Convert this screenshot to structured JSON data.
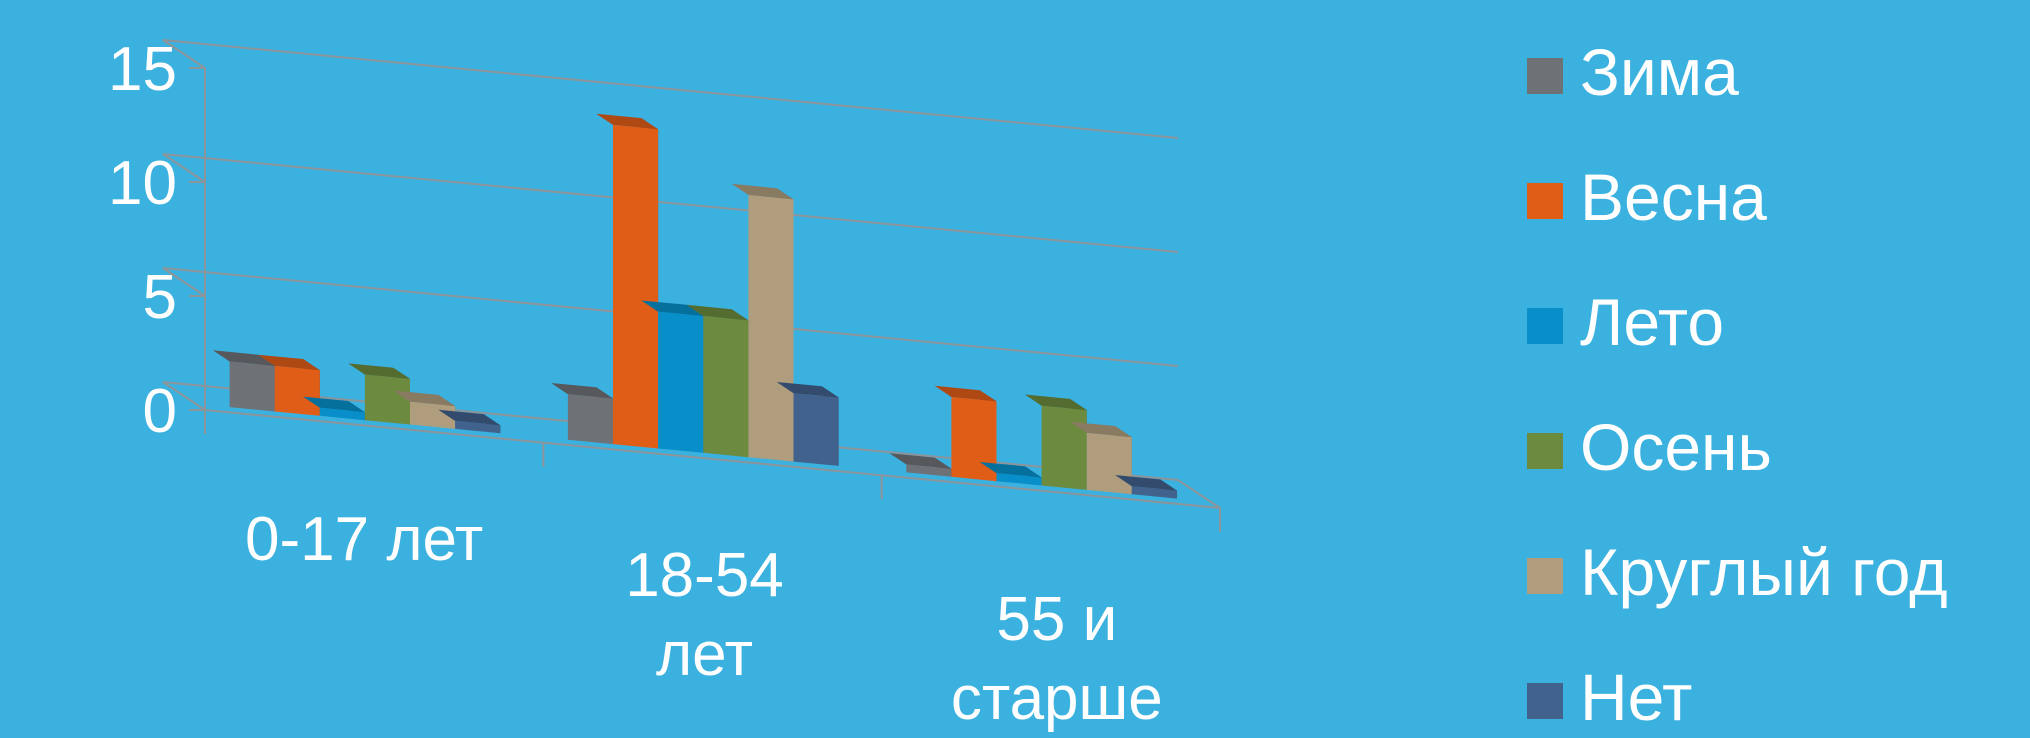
{
  "chart_data": {
    "type": "bar",
    "categories": [
      "0-17 лет",
      "18-54 лет",
      "55 и старше"
    ],
    "category_lines": [
      [
        "0-17 лет"
      ],
      [
        "18-54",
        "лет"
      ],
      [
        "55 и",
        "старше"
      ]
    ],
    "series": [
      {
        "name": "Зима",
        "values": [
          2,
          2,
          0
        ],
        "color": "#6e7176"
      },
      {
        "name": "Весна",
        "values": [
          2,
          14,
          3.5
        ],
        "color": "#e05d18"
      },
      {
        "name": "Лето",
        "values": [
          0,
          6,
          0
        ],
        "color": "#088fc9"
      },
      {
        "name": "Осень",
        "values": [
          2,
          6,
          3.5
        ],
        "color": "#6d8b3f"
      },
      {
        "name": "Круглый год",
        "values": [
          1,
          11.5,
          2.5
        ],
        "color": "#b09d7d"
      },
      {
        "name": "Нет",
        "values": [
          0,
          3,
          0
        ],
        "color": "#41628c"
      }
    ],
    "yticks": [
      "0",
      "5",
      "10",
      "15"
    ],
    "ylim": [
      0,
      15
    ],
    "grid": true,
    "legend_position": "right",
    "projection": "3d-clustered-column"
  }
}
